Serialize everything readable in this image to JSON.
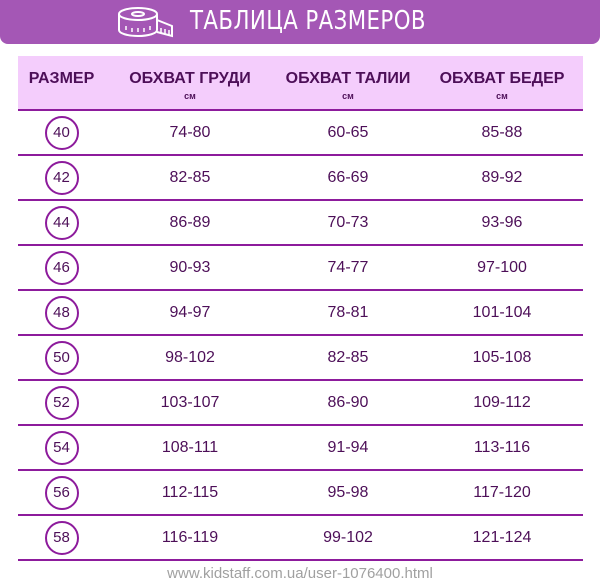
{
  "title": "ТАБЛИЦА РАЗМЕРОВ",
  "colors": {
    "banner": "#a457b5",
    "header_bg": "#f4cdfc",
    "line": "#8d1b9c",
    "text": "#4d0f58"
  },
  "icon": "measuring-tape-icon",
  "headers": [
    {
      "label": "РАЗМЕР",
      "unit": ""
    },
    {
      "label": "ОБХВАТ ГРУДИ",
      "unit": "см"
    },
    {
      "label": "ОБХВАТ ТАЛИИ",
      "unit": "см"
    },
    {
      "label": "ОБХВАТ БЕДЕР",
      "unit": "см"
    }
  ],
  "rows": [
    [
      "40",
      "74-80",
      "60-65",
      "85-88"
    ],
    [
      "42",
      "82-85",
      "66-69",
      "89-92"
    ],
    [
      "44",
      "86-89",
      "70-73",
      "93-96"
    ],
    [
      "46",
      "90-93",
      "74-77",
      "97-100"
    ],
    [
      "48",
      "94-97",
      "78-81",
      "101-104"
    ],
    [
      "50",
      "98-102",
      "82-85",
      "105-108"
    ],
    [
      "52",
      "103-107",
      "86-90",
      "109-112"
    ],
    [
      "54",
      "108-111",
      "91-94",
      "113-116"
    ],
    [
      "56",
      "112-115",
      "95-98",
      "117-120"
    ],
    [
      "58",
      "116-119",
      "99-102",
      "121-124"
    ]
  ],
  "watermark": "www.kidstaff.com.ua/user-1076400.html"
}
